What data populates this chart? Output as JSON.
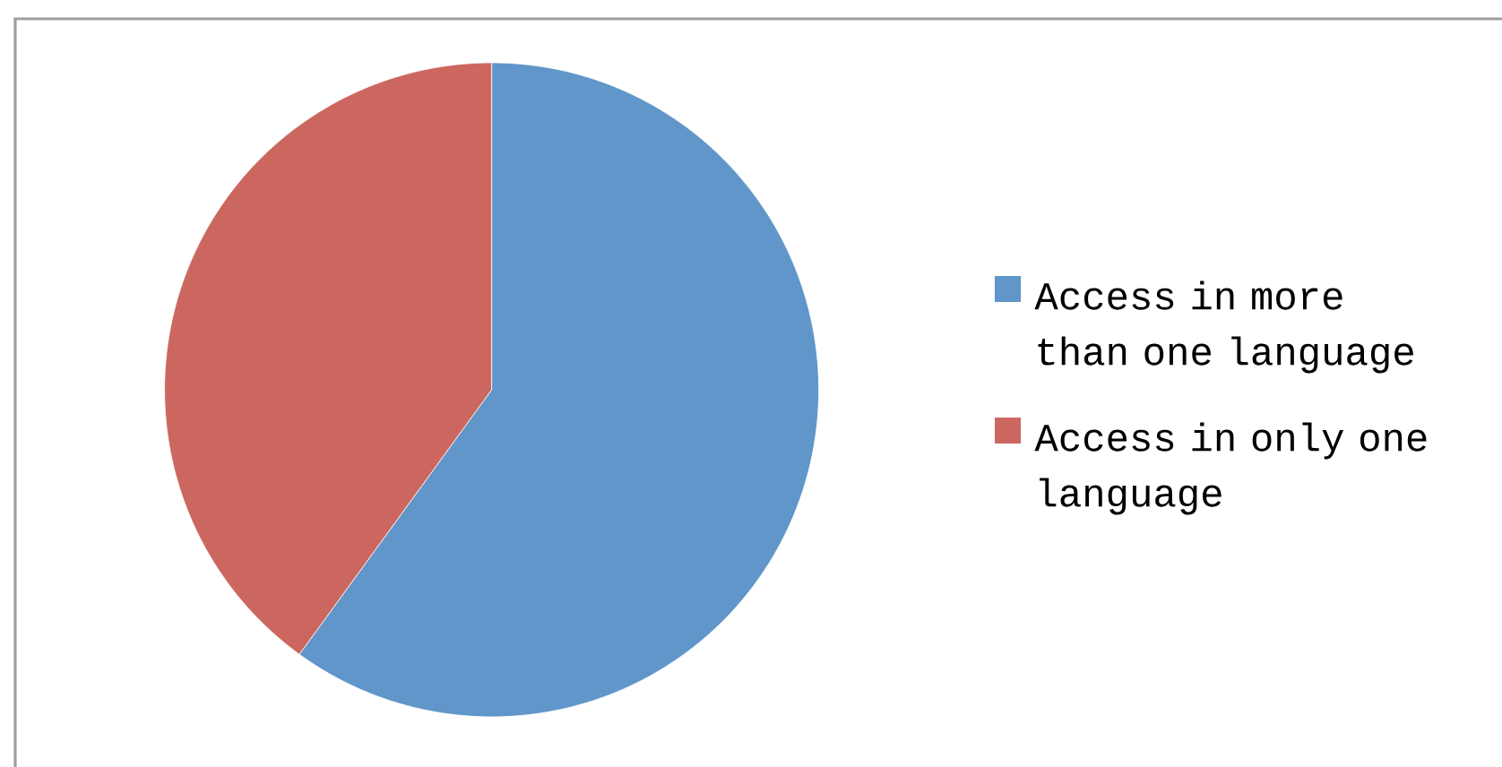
{
  "chart_data": {
    "type": "pie",
    "categories": [
      "Access in more than one language",
      "Access in only one language"
    ],
    "values": [
      60,
      40
    ],
    "colors": [
      "#6096c9",
      "#cc6760"
    ],
    "legend": "right"
  }
}
